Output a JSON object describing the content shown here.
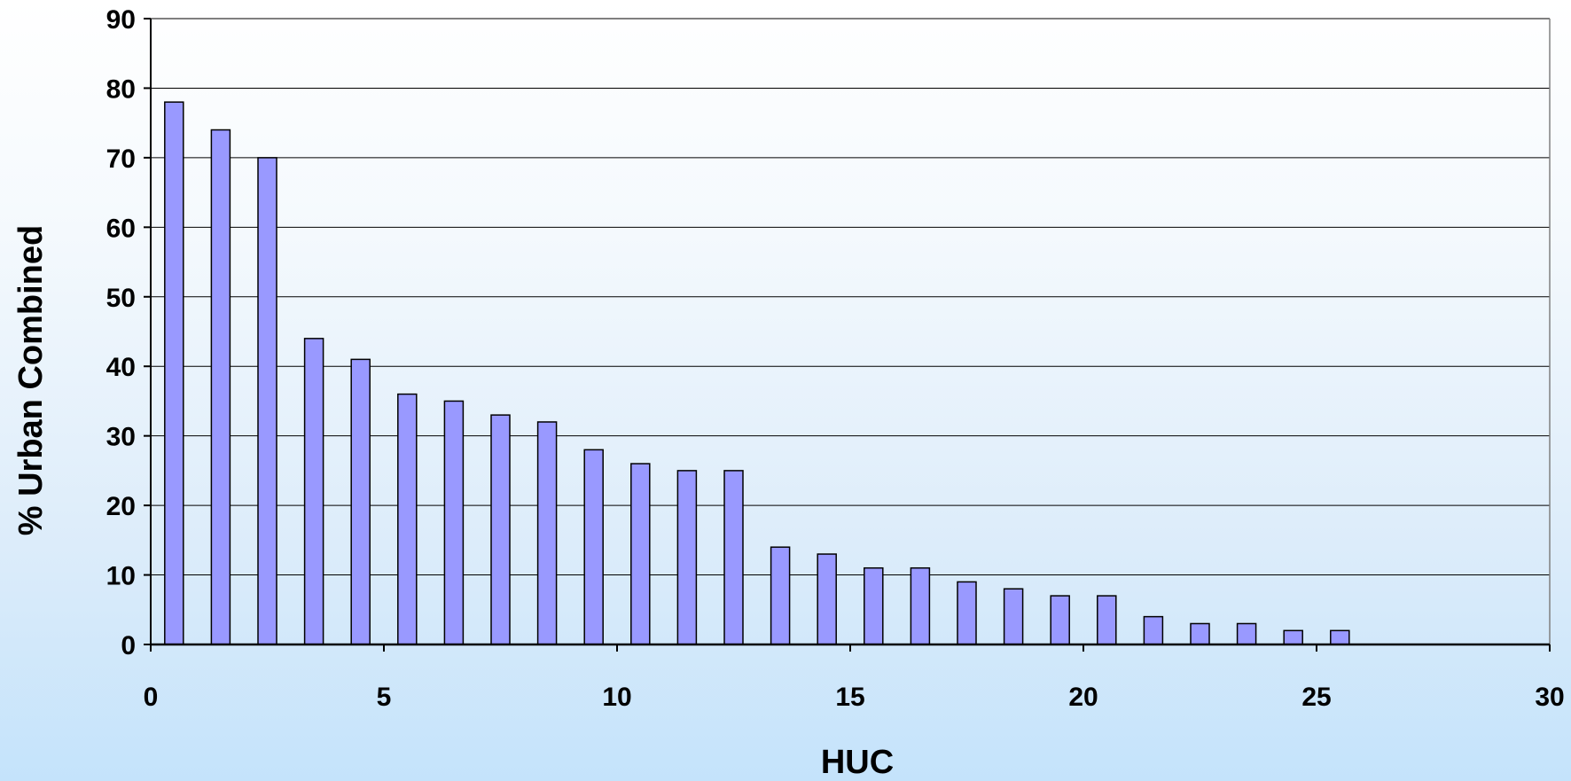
{
  "chart_data": {
    "type": "bar",
    "title": "",
    "xlabel": "HUC",
    "ylabel": "% Urban Combined",
    "xlim": [
      0,
      30
    ],
    "ylim": [
      0,
      90
    ],
    "x_ticks": [
      0,
      5,
      10,
      15,
      20,
      25,
      30
    ],
    "y_ticks": [
      0,
      10,
      20,
      30,
      40,
      50,
      60,
      70,
      80,
      90
    ],
    "grid": "horizontal",
    "legend": "none",
    "bar_color": "#9999ff",
    "bar_edge_color": "#000000",
    "x": [
      0.5,
      1.5,
      2.5,
      3.5,
      4.5,
      5.5,
      6.5,
      7.5,
      8.5,
      9.5,
      10.5,
      11.5,
      12.5,
      13.5,
      14.5,
      15.5,
      16.5,
      17.5,
      18.5,
      19.5,
      20.5,
      21.5,
      22.5,
      23.5,
      24.5,
      25.5
    ],
    "values": [
      78,
      74,
      70,
      44,
      41,
      36,
      35,
      33,
      32,
      28,
      26,
      25,
      25,
      14,
      13,
      11,
      11,
      9,
      8,
      7,
      7,
      4,
      3,
      3,
      2,
      2
    ]
  }
}
